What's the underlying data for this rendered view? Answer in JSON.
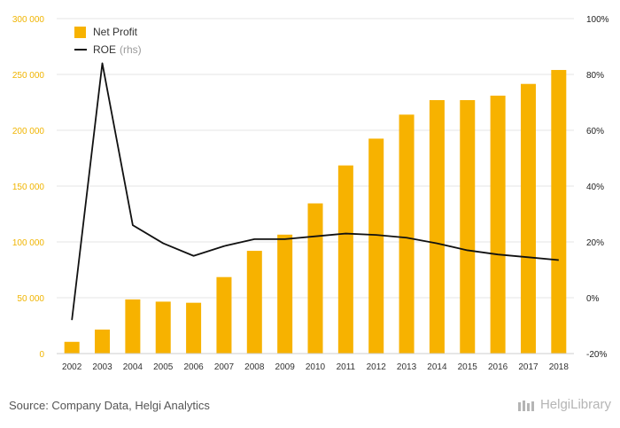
{
  "chart_data": {
    "type": "bar",
    "categories": [
      "2002",
      "2003",
      "2004",
      "2005",
      "2006",
      "2007",
      "2008",
      "2009",
      "2010",
      "2011",
      "2012",
      "2013",
      "2014",
      "2015",
      "2016",
      "2017",
      "2018"
    ],
    "series": [
      {
        "name": "Net Profit",
        "type": "bar",
        "axis": "left",
        "color": "#f7b200",
        "values": [
          10500,
          21500,
          48500,
          46500,
          45500,
          68500,
          92000,
          106500,
          134500,
          168500,
          192500,
          214000,
          227000,
          227000,
          231000,
          241500,
          254000
        ]
      },
      {
        "name": "ROE",
        "name_suffix": "(rhs)",
        "type": "line",
        "axis": "right",
        "color": "#111111",
        "values": [
          -8,
          84,
          26,
          19.5,
          15,
          18.5,
          21,
          21,
          22,
          23,
          22.5,
          21.5,
          19.5,
          17,
          15.5,
          14.5,
          13.5
        ]
      }
    ],
    "y_left": {
      "min": 0,
      "max": 300000,
      "ticks": [
        "300 000",
        "250 000",
        "200 000",
        "150 000",
        "100 000",
        "50 000",
        "0"
      ]
    },
    "y_right": {
      "min": -20,
      "max": 100,
      "ticks": [
        "100%",
        "80%",
        "60%",
        "40%",
        "20%",
        "0%",
        "-20%"
      ]
    },
    "grid": true,
    "legend_position": "top-left",
    "left_axis_color": "#f0b400"
  },
  "footer": {
    "source": "Source: Company Data, Helgi Analytics",
    "logo_text": "HelgiLibrary"
  }
}
